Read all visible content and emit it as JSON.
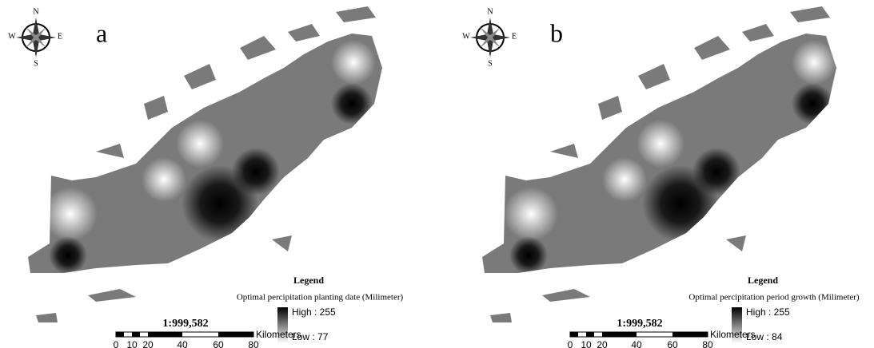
{
  "panels": [
    {
      "label": "a",
      "compass": {
        "n": "N",
        "s": "S",
        "e": "E",
        "w": "W"
      },
      "legend": {
        "title": "Legend",
        "field": "Optimal percipitation planting date (Milimeter)",
        "high": "High : 255",
        "low": "Low : 77"
      },
      "scale": "1:999,582",
      "scale_bar": {
        "unit": "Kilometers",
        "ticks": [
          "0",
          "10",
          "20",
          "40",
          "60",
          "80"
        ]
      }
    },
    {
      "label": "b",
      "compass": {
        "n": "N",
        "s": "S",
        "e": "E",
        "w": "W"
      },
      "legend": {
        "title": "Legend",
        "field": "Optimal percipitation period growth (Milimeter)",
        "high": "High : 255",
        "low": "Low : 84"
      },
      "scale": "1:999,582",
      "scale_bar": {
        "unit": "Kilometers",
        "ticks": [
          "0",
          "10",
          "20",
          "40",
          "60",
          "80"
        ]
      }
    }
  ]
}
